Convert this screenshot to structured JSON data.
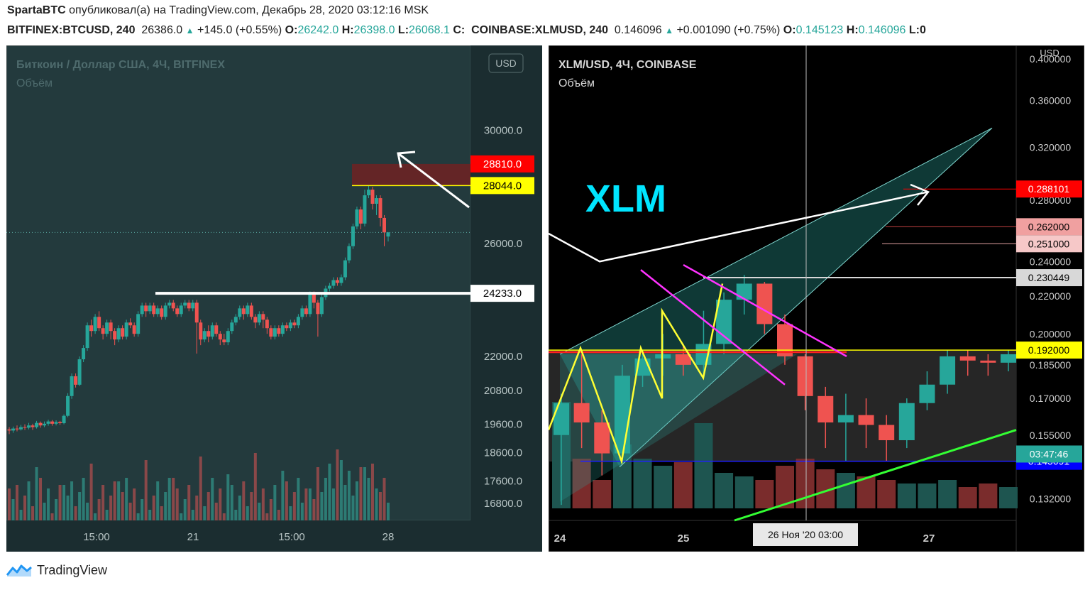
{
  "header": {
    "author": "SpartaBTC",
    "published_text": "опубликовал(а) на TradingView.com, Декабрь 28, 2020 03:12:16 MSK"
  },
  "ticker_line": {
    "sym1": "BITFINEX:BTCUSD, 240",
    "sym1_last": "26386.0",
    "sym1_change": "+145.0 (+0.55%)",
    "o_lbl": "O:",
    "sym1_o": "26242.0",
    "h_lbl": "H:",
    "sym1_h": "26398.0",
    "l_lbl": "L:",
    "sym1_l": "26068.1",
    "c_lbl": "C:",
    "sym2": "COINBASE:XLMUSD, 240",
    "sym2_last": "0.146096",
    "sym2_change": "+0.001090 (+0.75%)",
    "sym2_o": "0.145123",
    "sym2_h": "0.146096",
    "tail": "L:0"
  },
  "left_chart": {
    "title": "Биткоин / Доллар США, 4Ч, BITFINEX",
    "volume_label": "Объём",
    "currency": "USD",
    "colors": {
      "bg": "#233a3d",
      "up": "#26a69a",
      "down": "#ef5350",
      "up_vol": "#2d7b74",
      "down_vol": "#8a4849"
    }
  },
  "right_chart": {
    "title": "XLM/USD, 4Ч, COINBASE",
    "volume_label": "Объём",
    "currency": "USD",
    "annotation": "XLM",
    "crosshair_label": "26 Ноя '20   03:00",
    "colors": {
      "bg": "#000000",
      "up": "#26a69a",
      "down": "#ef5350",
      "channel": "#2aa39a"
    }
  },
  "chart_data": [
    {
      "type": "candlestick",
      "series": [
        {
          "name": "BITFINEX:BTCUSD, 240"
        }
      ],
      "x_ticks": [
        "15:00",
        "21",
        "15:00",
        "28"
      ],
      "y_ticks": [
        16800,
        17600,
        18600,
        19600,
        20800,
        22000,
        26000,
        30000
      ],
      "y_tick_labels": [
        "16800.0",
        "17600.0",
        "18600.0",
        "19600.0",
        "20800.0",
        "22000.0",
        "26000.0",
        "30000.0"
      ],
      "ylim": [
        16200,
        32800
      ],
      "price_labels": [
        {
          "value": 28810.0,
          "label": "28810.0",
          "color": "#ff0000"
        },
        {
          "value": 28044.0,
          "label": "28044.0",
          "color": "#ffff00"
        },
        {
          "value": 24233.0,
          "label": "24233.0",
          "color": "#ffffff"
        }
      ],
      "resistance_zone": [
        28044.0,
        28810.0
      ],
      "support_line": 24233.0,
      "candles": [
        [
          19420,
          19380,
          19250,
          19500
        ],
        [
          19380,
          19450,
          19300,
          19520
        ],
        [
          19450,
          19420,
          19350,
          19560
        ],
        [
          19420,
          19500,
          19380,
          19580
        ],
        [
          19500,
          19480,
          19400,
          19600
        ],
        [
          19480,
          19560,
          19420,
          19650
        ],
        [
          19560,
          19500,
          19400,
          19620
        ],
        [
          19500,
          19650,
          19450,
          19720
        ],
        [
          19650,
          19560,
          19480,
          19700
        ],
        [
          19560,
          19620,
          19500,
          19700
        ],
        [
          19620,
          19700,
          19550,
          19760
        ],
        [
          19700,
          19620,
          19550,
          19750
        ],
        [
          19620,
          19680,
          19560,
          19740
        ],
        [
          19680,
          19640,
          19580,
          19720
        ],
        [
          19640,
          19900,
          19600,
          19950
        ],
        [
          19900,
          20600,
          19850,
          20700
        ],
        [
          20600,
          21300,
          20500,
          21400
        ],
        [
          21300,
          21000,
          20900,
          21400
        ],
        [
          21000,
          21900,
          20950,
          22000
        ],
        [
          21900,
          22300,
          21800,
          22400
        ],
        [
          22300,
          23100,
          22200,
          23200
        ],
        [
          23100,
          22900,
          22700,
          23300
        ],
        [
          22900,
          23400,
          22800,
          23500
        ],
        [
          23400,
          23000,
          22900,
          23600
        ],
        [
          23000,
          22800,
          22600,
          23100
        ],
        [
          22800,
          23200,
          22700,
          23300
        ],
        [
          23200,
          22900,
          22600,
          23300
        ],
        [
          22900,
          22600,
          22400,
          23000
        ],
        [
          22600,
          23000,
          22500,
          23100
        ],
        [
          23000,
          22700,
          22600,
          23100
        ],
        [
          22700,
          23200,
          22600,
          23300
        ],
        [
          23200,
          23100,
          23000,
          23350
        ],
        [
          23100,
          22800,
          22700,
          23200
        ],
        [
          22800,
          23500,
          22700,
          23600
        ],
        [
          23500,
          23800,
          23400,
          23900
        ],
        [
          23800,
          23600,
          23400,
          23900
        ],
        [
          23600,
          23800,
          23500,
          23900
        ],
        [
          23800,
          23500,
          23400,
          23900
        ],
        [
          23500,
          23700,
          23400,
          23800
        ],
        [
          23700,
          23400,
          23300,
          23800
        ],
        [
          23400,
          23800,
          23300,
          23900
        ],
        [
          23800,
          23900,
          23700,
          24000
        ],
        [
          23900,
          23700,
          23600,
          24000
        ],
        [
          23700,
          23500,
          23400,
          23800
        ],
        [
          23500,
          23800,
          23400,
          23900
        ],
        [
          23800,
          23900,
          23700,
          24000
        ],
        [
          23900,
          23700,
          23600,
          24000
        ],
        [
          23700,
          23900,
          23600,
          24000
        ],
        [
          23900,
          23200,
          22100,
          24000
        ],
        [
          23200,
          22600,
          22400,
          23300
        ],
        [
          22600,
          22900,
          22500,
          23000
        ],
        [
          22900,
          22700,
          22500,
          23100
        ],
        [
          22700,
          23100,
          22600,
          23200
        ],
        [
          23100,
          22800,
          22700,
          23200
        ],
        [
          22800,
          22600,
          22400,
          22900
        ],
        [
          22600,
          22500,
          22400,
          22800
        ],
        [
          22500,
          22900,
          22400,
          23000
        ],
        [
          22900,
          23200,
          22800,
          23300
        ],
        [
          23200,
          23400,
          23100,
          23500
        ],
        [
          23400,
          23700,
          23300,
          23800
        ],
        [
          23700,
          23500,
          23300,
          23800
        ],
        [
          23500,
          23800,
          23400,
          23900
        ],
        [
          23800,
          23400,
          23300,
          23900
        ],
        [
          23400,
          23200,
          23000,
          23500
        ],
        [
          23200,
          23500,
          23100,
          23600
        ],
        [
          23500,
          23300,
          23000,
          23600
        ],
        [
          23300,
          23000,
          22800,
          23400
        ],
        [
          23000,
          22700,
          22600,
          23100
        ],
        [
          22700,
          23000,
          22600,
          23100
        ],
        [
          23000,
          22800,
          22700,
          23100
        ],
        [
          22800,
          23100,
          22700,
          23200
        ],
        [
          23100,
          23000,
          22900,
          23200
        ],
        [
          23000,
          23200,
          22900,
          23300
        ],
        [
          23200,
          23100,
          23000,
          23300
        ],
        [
          23100,
          23400,
          23000,
          23500
        ],
        [
          23400,
          23700,
          23300,
          23800
        ],
        [
          23700,
          23500,
          23400,
          23800
        ],
        [
          23500,
          24200,
          23400,
          24300
        ],
        [
          24200,
          23900,
          23700,
          24300
        ],
        [
          23900,
          23500,
          22700,
          24000
        ],
        [
          23500,
          24100,
          23400,
          24200
        ],
        [
          24100,
          24400,
          24000,
          24500
        ],
        [
          24400,
          24500,
          24300,
          24600
        ],
        [
          24500,
          24700,
          24400,
          24800
        ],
        [
          24700,
          24600,
          24500,
          24800
        ],
        [
          24600,
          24800,
          24500,
          24900
        ],
        [
          24800,
          25400,
          24700,
          25500
        ],
        [
          25400,
          25900,
          25300,
          26000
        ],
        [
          25900,
          26600,
          25800,
          26700
        ],
        [
          26600,
          27200,
          26500,
          27300
        ],
        [
          27200,
          26700,
          26500,
          27300
        ],
        [
          26700,
          27700,
          26600,
          27900
        ],
        [
          27700,
          27900,
          27600,
          28050
        ],
        [
          27900,
          27400,
          27200,
          28000
        ],
        [
          27400,
          27600,
          27000,
          27700
        ],
        [
          27600,
          26900,
          26600,
          27700
        ],
        [
          26900,
          26386,
          25900,
          27000
        ],
        [
          26242,
          26386,
          26068,
          26398
        ]
      ]
    },
    {
      "type": "candlestick",
      "series": [
        {
          "name": "COINBASE:XLMUSD, 240"
        }
      ],
      "x_ticks": [
        "24",
        "25",
        "26 Ноя '20   03:00",
        "27"
      ],
      "y_ticks": [
        0.132,
        0.155,
        0.17,
        0.185,
        0.2,
        0.22,
        0.24,
        0.28,
        0.32,
        0.36,
        0.4
      ],
      "y_tick_labels": [
        "0.132000",
        "0.155000",
        "0.170000",
        "0.185000",
        "0.200000",
        "0.220000",
        "0.240000",
        "0.280000",
        "0.320000",
        "0.360000",
        "0.400000"
      ],
      "ylim": [
        0.125,
        0.41
      ],
      "price_labels": [
        {
          "value": 0.288101,
          "label": "0.288101",
          "color": "#ff0000"
        },
        {
          "value": 0.262,
          "label": "0.262000",
          "color": "#f0a0a0"
        },
        {
          "value": 0.251,
          "label": "0.251000",
          "color": "#f6c8c8"
        },
        {
          "value": 0.230449,
          "label": "0.230449",
          "color": "#d8d8d8"
        },
        {
          "value": 0.192,
          "label": "0.192000",
          "color": "#ffff00"
        },
        {
          "value": 0.145091,
          "label": "0.145091",
          "color": "#0000ff"
        }
      ],
      "time_label": {
        "label": "03:47:46",
        "color": "#26a69a"
      },
      "candles": [
        [
          0.155,
          0.168,
          0.13,
          0.172
        ],
        [
          0.168,
          0.16,
          0.15,
          0.19
        ],
        [
          0.16,
          0.148,
          0.14,
          0.165
        ],
        [
          0.148,
          0.18,
          0.145,
          0.185
        ],
        [
          0.18,
          0.188,
          0.175,
          0.192
        ],
        [
          0.188,
          0.19,
          0.18,
          0.2
        ],
        [
          0.19,
          0.185,
          0.18,
          0.195
        ],
        [
          0.185,
          0.195,
          0.18,
          0.212
        ],
        [
          0.195,
          0.218,
          0.19,
          0.222
        ],
        [
          0.218,
          0.227,
          0.21,
          0.232
        ],
        [
          0.227,
          0.205,
          0.2,
          0.228
        ],
        [
          0.205,
          0.189,
          0.185,
          0.21
        ],
        [
          0.189,
          0.171,
          0.165,
          0.19
        ],
        [
          0.171,
          0.16,
          0.15,
          0.175
        ],
        [
          0.16,
          0.163,
          0.145,
          0.172
        ],
        [
          0.163,
          0.159,
          0.15,
          0.17
        ],
        [
          0.159,
          0.153,
          0.145,
          0.163
        ],
        [
          0.153,
          0.168,
          0.15,
          0.17
        ],
        [
          0.168,
          0.176,
          0.165,
          0.182
        ],
        [
          0.176,
          0.189,
          0.172,
          0.192
        ],
        [
          0.189,
          0.187,
          0.18,
          0.192
        ],
        [
          0.187,
          0.186,
          0.18,
          0.19
        ],
        [
          0.186,
          0.19,
          0.182,
          0.192
        ]
      ]
    }
  ]
}
